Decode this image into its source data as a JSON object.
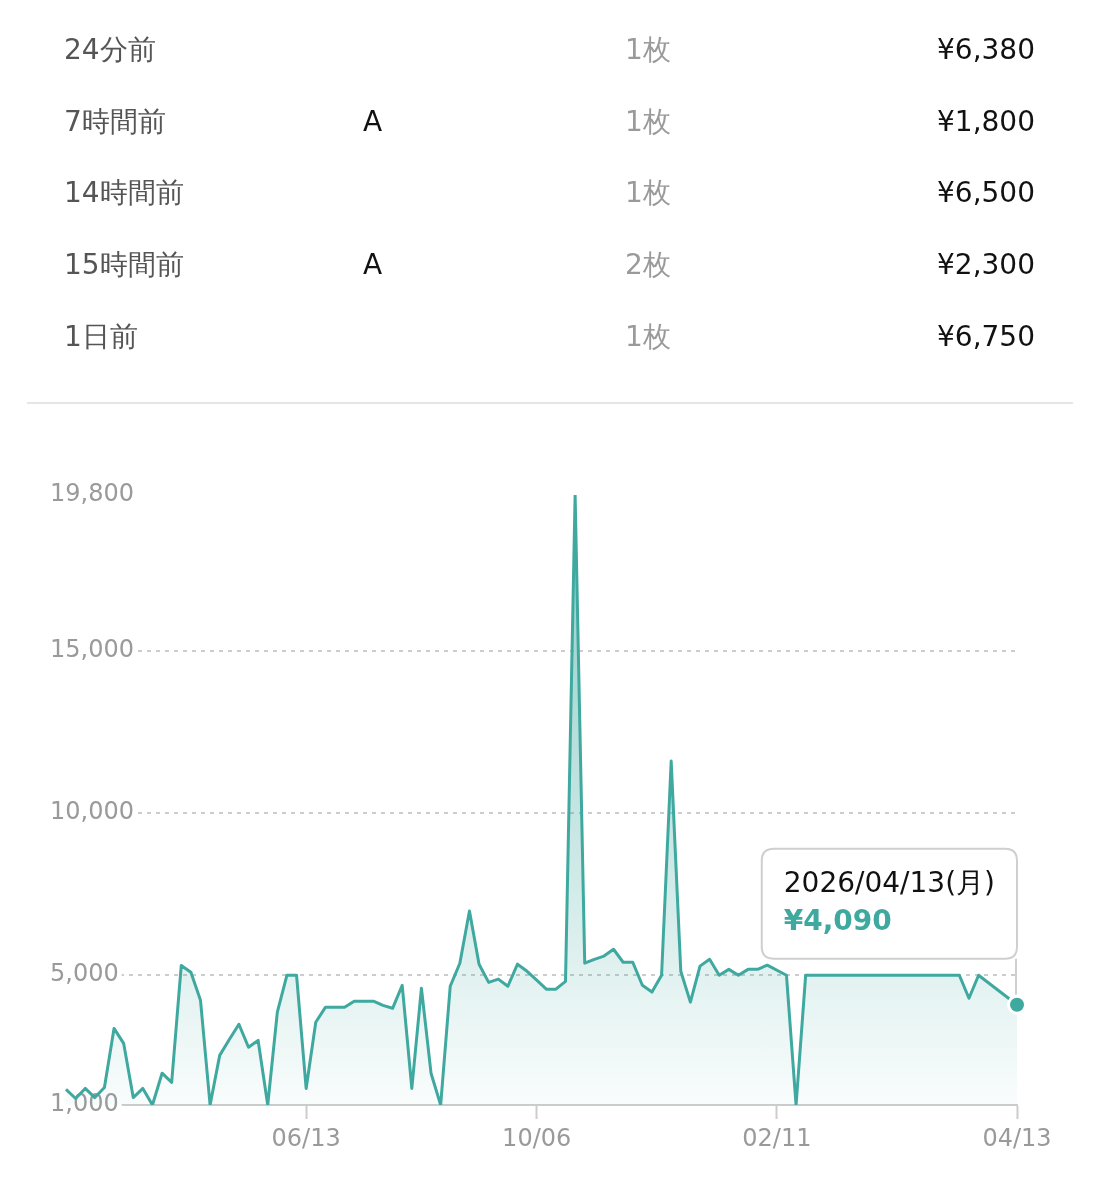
{
  "chart_data": [
    {
      "type": "other",
      "annotations": [
        "24分前",
        null,
        "1枚",
        "¥6,380",
        "7時間前",
        "A",
        "1枚",
        "¥1,800",
        "14時間前",
        null,
        "1枚",
        "¥6,500",
        "15時間前",
        "A",
        "2枚",
        "¥2,300",
        "1日前",
        null,
        "1枚",
        "¥6,750"
      ]
    },
    {
      "type": "area",
      "categories": [
        null,
        null,
        null,
        null,
        null,
        null,
        null,
        null,
        null,
        null,
        null,
        null,
        null,
        null,
        null,
        null,
        null,
        null,
        null,
        null,
        null,
        null,
        null,
        null,
        null,
        "06/13",
        null,
        null,
        null,
        null,
        null,
        null,
        null,
        null,
        null,
        null,
        null,
        null,
        null,
        null,
        null,
        null,
        null,
        null,
        null,
        null,
        null,
        null,
        null,
        "10/06",
        null,
        null,
        null,
        null,
        null,
        null,
        null,
        null,
        null,
        null,
        null,
        null,
        null,
        null,
        null,
        null,
        null,
        null,
        null,
        null,
        null,
        null,
        null,
        null,
        "02/11",
        null,
        null,
        null,
        null,
        null,
        null,
        null,
        null,
        null,
        null,
        null,
        null,
        null,
        null,
        null,
        null,
        null,
        null,
        null,
        null,
        null,
        null,
        null,
        null,
        "04/13"
      ],
      "series": [
        {
          "color": "#3fa9a0",
          "values": [
            1480,
            1200,
            1510,
            1230,
            1540,
            3360,
            2900,
            1230,
            1510,
            1000,
            1980,
            1700,
            5300,
            5090,
            4230,
            1000,
            2530,
            3020,
            3490,
            2780,
            2990,
            1000,
            3860,
            5000,
            5000,
            1510,
            3550,
            4010,
            4010,
            4010,
            4200,
            4200,
            4200,
            4070,
            3980,
            4690,
            1510,
            4600,
            1980,
            1000,
            4660,
            5370,
            6980,
            5340,
            4780,
            4880,
            4660,
            5340,
            5120,
            4850,
            4570,
            4570,
            4810,
            19800,
            5370,
            5490,
            5590,
            5800,
            5400,
            5400,
            4690,
            4480,
            5000,
            11600,
            5120,
            4170,
            5280,
            5490,
            5000,
            5180,
            5000,
            5180,
            5180,
            5310,
            null,
            5000,
            1000,
            5000,
            null,
            null,
            null,
            null,
            null,
            null,
            null,
            null,
            null,
            null,
            null,
            null,
            null,
            null,
            null,
            5000,
            4290,
            5000,
            null,
            null,
            null,
            4090
          ]
        }
      ],
      "ylim": [
        1000,
        19800
      ],
      "yticks": [
        {
          "value": 1000,
          "label": "1,000"
        },
        {
          "value": 5000,
          "label": "5,000"
        },
        {
          "value": 10000,
          "label": "10,000"
        },
        {
          "value": 15000,
          "label": "15,000"
        },
        {
          "value": 19800,
          "label": "19,800"
        }
      ],
      "grid": "y",
      "annotations": [
        "2026/04/13(月)",
        "¥4,090"
      ]
    }
  ]
}
